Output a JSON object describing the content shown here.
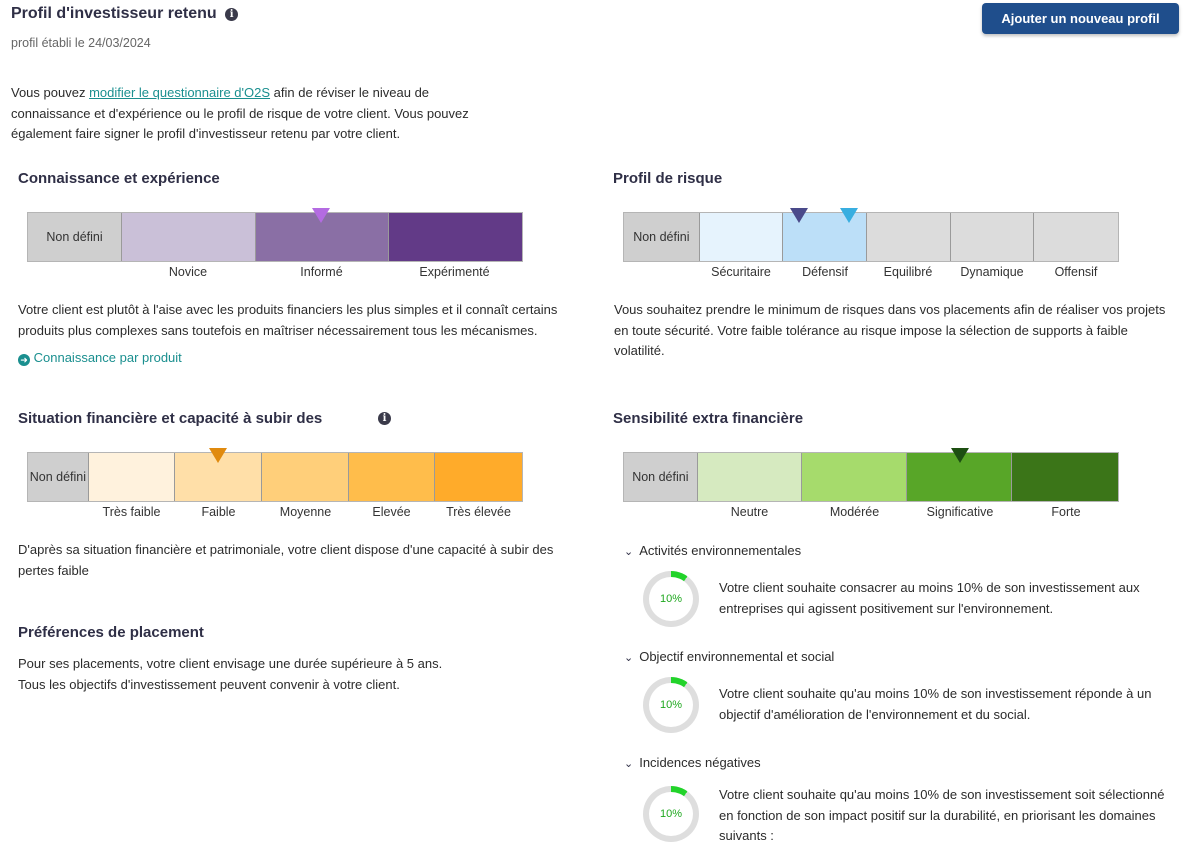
{
  "header": {
    "title": "Profil d'investisseur retenu",
    "subtitle": "profil établi le 24/03/2024",
    "add_button": "Ajouter un nouveau profil"
  },
  "intro": {
    "before": "Vous pouvez ",
    "link": "modifier le questionnaire d'O2S",
    "after": " afin de réviser le niveau de connaissance et d'expérience ou le profil de risque de votre client. Vous pouvez également faire signer le profil d'investisseur retenu par votre client."
  },
  "knowledge": {
    "title": "Connaissance et expérience",
    "undefined_label": "Non défini",
    "levels": [
      "Novice",
      "Informé",
      "Expérimenté"
    ],
    "selected": "Informé",
    "colors": [
      "#cac0d8",
      "#8a6fa5",
      "#623a87"
    ],
    "marker_color": "#b46be2",
    "description": "Votre client est plutôt à l'aise avec les produits financiers les plus simples et il connaît certains produits plus complexes sans toutefois en maîtriser nécessairement tous les mécanismes.",
    "link": "Connaissance par produit"
  },
  "risk": {
    "title": "Profil de risque",
    "undefined_label": "Non défini",
    "levels": [
      "Sécuritaire",
      "Défensif",
      "Equilibré",
      "Dynamique",
      "Offensif"
    ],
    "colors": [
      "#e6f3fd",
      "#bcdff8",
      "#dcdcdc",
      "#dcdcdc",
      "#dcdcdc"
    ],
    "marker_colors": [
      "#4a4a8a",
      "#38aee0"
    ],
    "description": "Vous souhaitez prendre le minimum de risques dans vos placements afin de réaliser vos projets en toute sécurité. Votre faible tolérance au risque impose la sélection de supports à faible volatilité."
  },
  "financial": {
    "title": "Situation financière et capacité à subir des",
    "undefined_label": "Non défini",
    "levels": [
      "Très faible",
      "Faible",
      "Moyenne",
      "Elevée",
      "Très élevée"
    ],
    "selected": "Faible",
    "colors": [
      "#fff2dd",
      "#ffdfa8",
      "#ffcf7a",
      "#ffbd4b",
      "#ffab2a"
    ],
    "marker_color": "#e08a0e",
    "description": "D'après sa situation financière et patrimoniale, votre client dispose d'une capacité à subir des pertes faible"
  },
  "preferences": {
    "title": "Préférences de placement",
    "line1": "Pour ses placements, votre client envisage une durée supérieure à 5 ans.",
    "line2": "Tous les objectifs d'investissement peuvent convenir à votre client."
  },
  "esg": {
    "title": "Sensibilité extra financière",
    "undefined_label": "Non défini",
    "levels": [
      "Neutre",
      "Modérée",
      "Significative",
      "Forte"
    ],
    "selected": "Significative",
    "colors": [
      "#d6eac0",
      "#a6db6c",
      "#58a628",
      "#3b7518"
    ],
    "marker_color": "#1d4f12",
    "items": [
      {
        "title": "Activités environnementales",
        "percent": "10%",
        "text": "Votre client souhaite consacrer au moins 10% de son investissement aux entreprises qui agissent positivement sur l'environnement."
      },
      {
        "title": "Objectif environnemental et social",
        "percent": "10%",
        "text": "Votre client souhaite qu'au moins 10% de son investissement réponde à un objectif d'amélioration de l'environnement et du social."
      },
      {
        "title": "Incidences négatives",
        "percent": "10%",
        "text": "Votre client souhaite qu'au moins 10% de son investissement soit sélectionné en fonction de son impact positif sur la durabilité, en priorisant les domaines suivants :"
      }
    ],
    "ring_fill": 0.1,
    "ring_color": "#22d32a",
    "ring_track": "#dedede"
  }
}
